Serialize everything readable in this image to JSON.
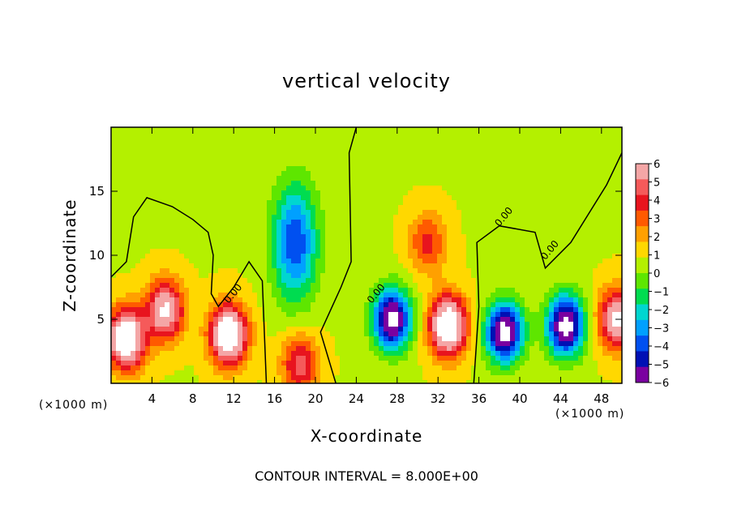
{
  "chart_data": {
    "type": "heatmap",
    "title": "vertical velocity",
    "xlabel": "X-coordinate",
    "ylabel": "Z-coordinate",
    "x_unit_label": "(×1000 m)",
    "footer": "CONTOUR INTERVAL = 8.000E+00",
    "xlim": [
      0,
      50
    ],
    "ylim": [
      0,
      20
    ],
    "x_ticks": [
      4,
      8,
      12,
      16,
      20,
      24,
      28,
      32,
      36,
      40,
      44,
      48
    ],
    "y_ticks": [
      5,
      10,
      15
    ],
    "colorbar": {
      "ticks": [
        6,
        5,
        4,
        3,
        2,
        1,
        0,
        -1,
        -2,
        -3,
        -4,
        -5,
        -6
      ],
      "range": [
        -6,
        6
      ],
      "colors": [
        "#f4a6a6",
        "#f55a5a",
        "#e8141e",
        "#ff5a00",
        "#ffa000",
        "#ffd800",
        "#b4f000",
        "#5ee600",
        "#00dc50",
        "#00d6d0",
        "#00a0ff",
        "#0050f0",
        "#0010b4",
        "#7a00a0"
      ]
    },
    "contour_labels": [
      "0.00",
      "0.00",
      "0.00",
      "0.00"
    ],
    "features": [
      {
        "kind": "updraft",
        "x": 1.5,
        "z": 3.5,
        "value": 8
      },
      {
        "kind": "updraft",
        "x": 5.3,
        "z": 5.7,
        "value": 6
      },
      {
        "kind": "updraft",
        "x": 11.5,
        "z": 3.8,
        "value": 8
      },
      {
        "kind": "updraft",
        "x": 33.0,
        "z": 4.5,
        "value": 8
      },
      {
        "kind": "updraft",
        "x": 31.0,
        "z": 11.0,
        "value": 3
      },
      {
        "kind": "updraft",
        "x": 18.5,
        "z": 1.5,
        "value": 4
      },
      {
        "kind": "updraft",
        "x": 49.5,
        "z": 5.0,
        "value": 6
      },
      {
        "kind": "downdraft",
        "x": 18.0,
        "z": 11.0,
        "value": -5
      },
      {
        "kind": "downdraft",
        "x": 27.5,
        "z": 5.0,
        "value": -8
      },
      {
        "kind": "downdraft",
        "x": 38.5,
        "z": 4.0,
        "value": -8
      },
      {
        "kind": "downdraft",
        "x": 44.5,
        "z": 4.5,
        "value": -8
      }
    ]
  }
}
